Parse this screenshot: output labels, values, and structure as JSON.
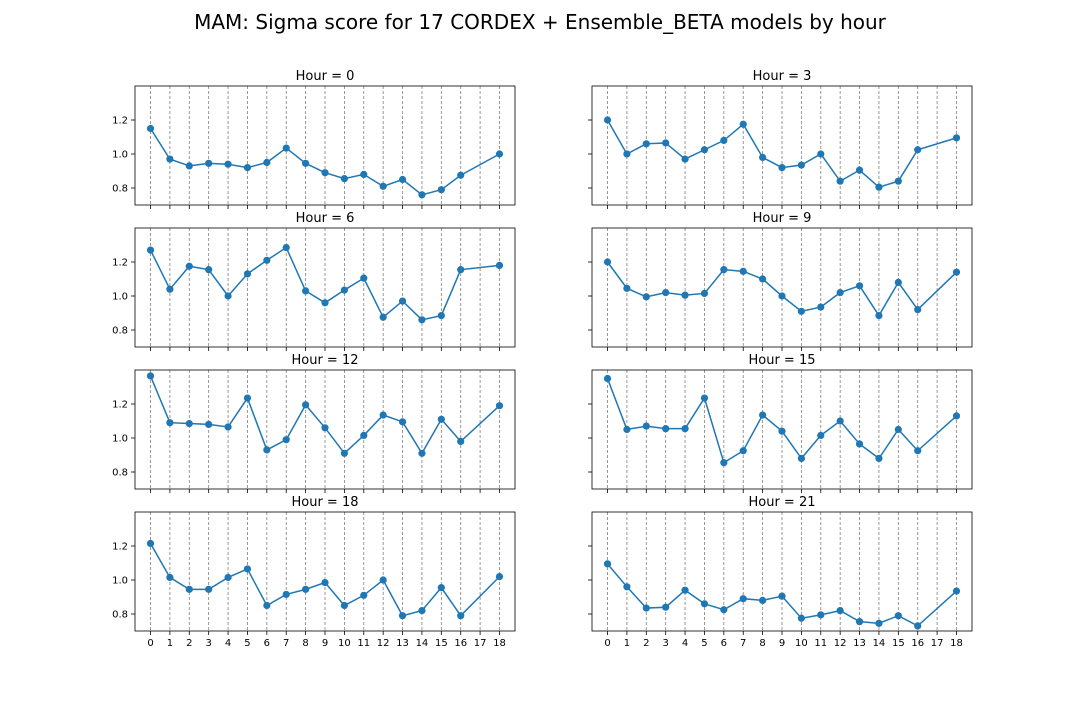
{
  "figure": {
    "title": "MAM: Sigma score for 17 CORDEX + Ensemble_BETA models by hour"
  },
  "colors": {
    "line": "#1f77b4",
    "grid": "#808080",
    "axes": "#000000",
    "background": "#ffffff"
  },
  "chart_data": [
    {
      "type": "line",
      "title": "Hour = 0",
      "x": [
        0,
        1,
        2,
        3,
        4,
        5,
        6,
        7,
        8,
        9,
        10,
        11,
        12,
        13,
        14,
        15,
        16,
        18
      ],
      "values": [
        1.15,
        0.97,
        0.93,
        0.945,
        0.94,
        0.92,
        0.95,
        1.035,
        0.945,
        0.89,
        0.855,
        0.88,
        0.81,
        0.85,
        0.76,
        0.79,
        0.875,
        1.0
      ],
      "xticks": [
        0,
        1,
        2,
        3,
        4,
        5,
        6,
        7,
        8,
        9,
        10,
        11,
        12,
        13,
        14,
        15,
        16,
        17,
        18
      ],
      "ylim": [
        0.7,
        1.4
      ],
      "yticks": [
        0.8,
        1.0,
        1.2
      ],
      "xlim": [
        -0.8,
        18.8
      ],
      "grid": "vertical-dashed"
    },
    {
      "type": "line",
      "title": "Hour = 3",
      "x": [
        0,
        1,
        2,
        3,
        4,
        5,
        6,
        7,
        8,
        9,
        10,
        11,
        12,
        13,
        14,
        15,
        16,
        18
      ],
      "values": [
        1.2,
        1.0,
        1.06,
        1.065,
        0.97,
        1.025,
        1.08,
        1.175,
        0.98,
        0.92,
        0.935,
        1.0,
        0.84,
        0.905,
        0.805,
        0.84,
        1.025,
        1.095
      ],
      "xticks": [
        0,
        1,
        2,
        3,
        4,
        5,
        6,
        7,
        8,
        9,
        10,
        11,
        12,
        13,
        14,
        15,
        16,
        17,
        18
      ],
      "ylim": [
        0.7,
        1.4
      ],
      "yticks": [
        0.8,
        1.0,
        1.2
      ],
      "xlim": [
        -0.8,
        18.8
      ],
      "grid": "vertical-dashed"
    },
    {
      "type": "line",
      "title": "Hour = 6",
      "x": [
        0,
        1,
        2,
        3,
        4,
        5,
        6,
        7,
        8,
        9,
        10,
        11,
        12,
        13,
        14,
        15,
        16,
        18
      ],
      "values": [
        1.27,
        1.04,
        1.175,
        1.155,
        1.0,
        1.13,
        1.21,
        1.285,
        1.03,
        0.96,
        1.035,
        1.105,
        0.875,
        0.97,
        0.86,
        0.885,
        1.155,
        1.18
      ],
      "xticks": [
        0,
        1,
        2,
        3,
        4,
        5,
        6,
        7,
        8,
        9,
        10,
        11,
        12,
        13,
        14,
        15,
        16,
        17,
        18
      ],
      "ylim": [
        0.7,
        1.4
      ],
      "yticks": [
        0.8,
        1.0,
        1.2
      ],
      "xlim": [
        -0.8,
        18.8
      ],
      "grid": "vertical-dashed"
    },
    {
      "type": "line",
      "title": "Hour = 9",
      "x": [
        0,
        1,
        2,
        3,
        4,
        5,
        6,
        7,
        8,
        9,
        10,
        11,
        12,
        13,
        14,
        15,
        16,
        18
      ],
      "values": [
        1.2,
        1.045,
        0.995,
        1.02,
        1.005,
        1.015,
        1.155,
        1.145,
        1.1,
        1.0,
        0.91,
        0.935,
        1.02,
        1.06,
        0.885,
        1.08,
        0.92,
        1.14
      ],
      "xticks": [
        0,
        1,
        2,
        3,
        4,
        5,
        6,
        7,
        8,
        9,
        10,
        11,
        12,
        13,
        14,
        15,
        16,
        17,
        18
      ],
      "ylim": [
        0.7,
        1.4
      ],
      "yticks": [
        0.8,
        1.0,
        1.2
      ],
      "xlim": [
        -0.8,
        18.8
      ],
      "grid": "vertical-dashed"
    },
    {
      "type": "line",
      "title": "Hour = 12",
      "x": [
        0,
        1,
        2,
        3,
        4,
        5,
        6,
        7,
        8,
        9,
        10,
        11,
        12,
        13,
        14,
        15,
        16,
        18
      ],
      "values": [
        1.365,
        1.09,
        1.085,
        1.08,
        1.065,
        1.235,
        0.93,
        0.99,
        1.195,
        1.06,
        0.91,
        1.015,
        1.135,
        1.095,
        0.91,
        1.11,
        0.98,
        1.19
      ],
      "xticks": [
        0,
        1,
        2,
        3,
        4,
        5,
        6,
        7,
        8,
        9,
        10,
        11,
        12,
        13,
        14,
        15,
        16,
        17,
        18
      ],
      "ylim": [
        0.7,
        1.4
      ],
      "yticks": [
        0.8,
        1.0,
        1.2
      ],
      "xlim": [
        -0.8,
        18.8
      ],
      "grid": "vertical-dashed"
    },
    {
      "type": "line",
      "title": "Hour = 15",
      "x": [
        0,
        1,
        2,
        3,
        4,
        5,
        6,
        7,
        8,
        9,
        10,
        11,
        12,
        13,
        14,
        15,
        16,
        18
      ],
      "values": [
        1.35,
        1.05,
        1.07,
        1.055,
        1.055,
        1.235,
        0.855,
        0.925,
        1.135,
        1.04,
        0.88,
        1.015,
        1.1,
        0.965,
        0.88,
        1.05,
        0.925,
        1.13
      ],
      "xticks": [
        0,
        1,
        2,
        3,
        4,
        5,
        6,
        7,
        8,
        9,
        10,
        11,
        12,
        13,
        14,
        15,
        16,
        17,
        18
      ],
      "ylim": [
        0.7,
        1.4
      ],
      "yticks": [
        0.8,
        1.0,
        1.2
      ],
      "xlim": [
        -0.8,
        18.8
      ],
      "grid": "vertical-dashed"
    },
    {
      "type": "line",
      "title": "Hour = 18",
      "x": [
        0,
        1,
        2,
        3,
        4,
        5,
        6,
        7,
        8,
        9,
        10,
        11,
        12,
        13,
        14,
        15,
        16,
        18
      ],
      "values": [
        1.215,
        1.015,
        0.945,
        0.945,
        1.015,
        1.065,
        0.85,
        0.915,
        0.945,
        0.985,
        0.85,
        0.91,
        1.0,
        0.79,
        0.82,
        0.955,
        0.79,
        1.02
      ],
      "xticks": [
        0,
        1,
        2,
        3,
        4,
        5,
        6,
        7,
        8,
        9,
        10,
        11,
        12,
        13,
        14,
        15,
        16,
        17,
        18
      ],
      "ylim": [
        0.7,
        1.4
      ],
      "yticks": [
        0.8,
        1.0,
        1.2
      ],
      "xlim": [
        -0.8,
        18.8
      ],
      "grid": "vertical-dashed"
    },
    {
      "type": "line",
      "title": "Hour = 21",
      "x": [
        0,
        1,
        2,
        3,
        4,
        5,
        6,
        7,
        8,
        9,
        10,
        11,
        12,
        13,
        14,
        15,
        16,
        18
      ],
      "values": [
        1.095,
        0.96,
        0.835,
        0.84,
        0.94,
        0.86,
        0.825,
        0.89,
        0.88,
        0.905,
        0.775,
        0.795,
        0.82,
        0.755,
        0.745,
        0.79,
        0.73,
        0.935
      ],
      "xticks": [
        0,
        1,
        2,
        3,
        4,
        5,
        6,
        7,
        8,
        9,
        10,
        11,
        12,
        13,
        14,
        15,
        16,
        17,
        18
      ],
      "ylim": [
        0.7,
        1.4
      ],
      "yticks": [
        0.8,
        1.0,
        1.2
      ],
      "xlim": [
        -0.8,
        18.8
      ],
      "grid": "vertical-dashed"
    }
  ]
}
